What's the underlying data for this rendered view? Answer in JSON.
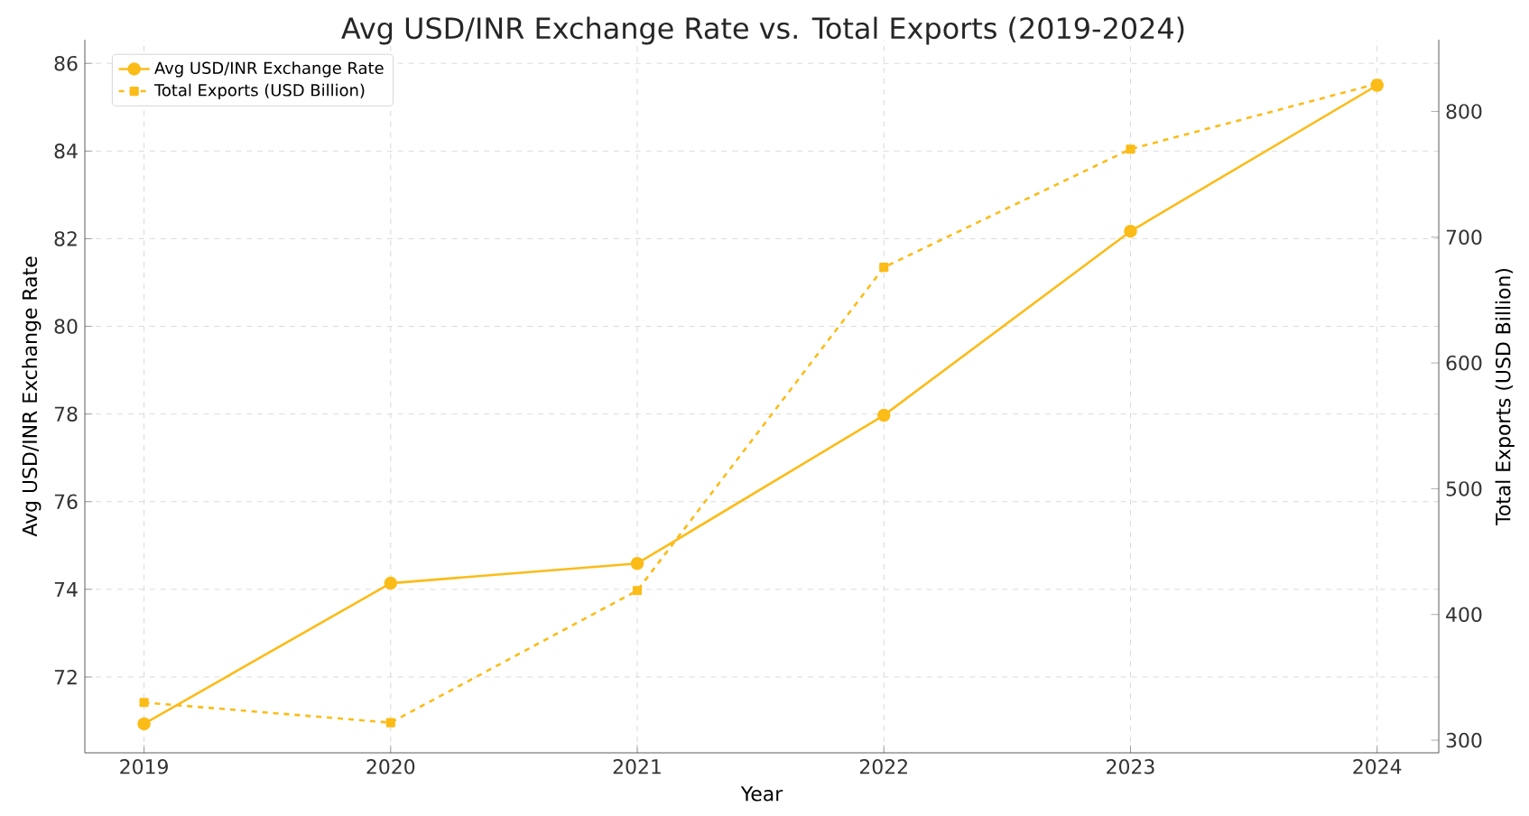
{
  "chart_data": {
    "type": "line",
    "title": "Avg USD/INR Exchange Rate vs. Total Exports (2019-2024)",
    "xlabel": "Year",
    "ylabel": "Avg USD/INR Exchange Rate",
    "y2label": "Total Exports (USD Billion)",
    "x": [
      2019,
      2020,
      2021,
      2022,
      2023,
      2024
    ],
    "series": [
      {
        "name": "Avg USD/INR Exchange Rate",
        "color": "#fbbc18",
        "marker": "circle",
        "line_style": "solid",
        "values": [
          70.93,
          74.14,
          74.59,
          77.97,
          82.17,
          85.5
        ]
      },
      {
        "name": "Total Exports (USD Billion)",
        "color": "#fbbc18",
        "marker": "square",
        "line_style": "dashed",
        "axis": "y2",
        "values": [
          330,
          314,
          419,
          676,
          770,
          822
        ]
      }
    ],
    "xlim": [
      2018.76,
      2024.25
    ],
    "xticks": [
      2019,
      2020,
      2021,
      2022,
      2023,
      2024
    ],
    "ylim": [
      70.27,
      86.54
    ],
    "yticks": [
      72,
      74,
      76,
      78,
      80,
      82,
      84,
      86
    ],
    "y2lim": [
      290,
      857
    ],
    "y2ticks": [
      300,
      400,
      500,
      600,
      700,
      800
    ],
    "grid": true,
    "legend": "top left"
  }
}
